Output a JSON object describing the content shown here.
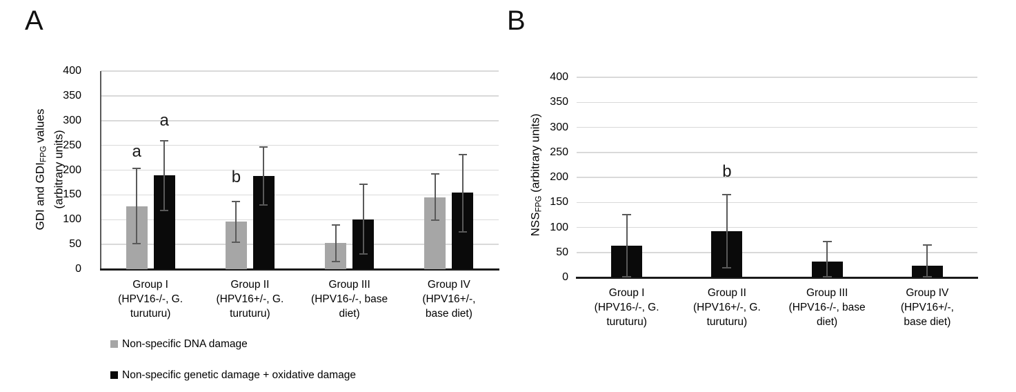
{
  "colors": {
    "gray_series": "#A6A6A6",
    "black_series": "#0A0A0A",
    "error_bar": "#595959",
    "gridline": "#D9D9D9",
    "axis": "#1A1A1A"
  },
  "chart_data": [
    {
      "type": "bar",
      "panel_label": "A",
      "ylabel_lines": [
        [
          {
            "t": "GDI and GDI"
          },
          {
            "t": "FPG",
            "sub": true
          },
          {
            "t": " values"
          }
        ],
        [
          {
            "t": "(arbitrary units)"
          }
        ]
      ],
      "ylim": [
        0,
        400
      ],
      "ytick_step": 50,
      "grid": true,
      "categories": [
        [
          "Group I",
          "(HPV16-/-, G.",
          "turuturu)"
        ],
        [
          "Group II",
          "(HPV16+/-, G.",
          "turuturu)"
        ],
        [
          "Group III",
          "(HPV16-/-, base",
          "diet)"
        ],
        [
          "Group IV",
          "(HPV16+/-,",
          "base diet)"
        ]
      ],
      "series": [
        {
          "name": "Non-specific DNA damage",
          "color": "#A6A6A6",
          "values": [
            127,
            96,
            53,
            145
          ],
          "err_low": [
            51,
            55,
            16,
            99
          ],
          "err_high": [
            203,
            137,
            89,
            193
          ]
        },
        {
          "name": "Non-specific genetic damage + oxidative damage",
          "color": "#0A0A0A",
          "values": [
            189,
            188,
            101,
            155
          ],
          "err_low": [
            118,
            130,
            30,
            75
          ],
          "err_high": [
            259,
            247,
            172,
            232
          ]
        }
      ],
      "annotations": [
        {
          "label": "a",
          "group": 0,
          "series": 0,
          "value": 237
        },
        {
          "label": "a",
          "group": 0,
          "series": 1,
          "value": 300
        },
        {
          "label": "b",
          "group": 1,
          "series": 0,
          "value": 185
        }
      ],
      "legend": true,
      "legend_position": "bottom-left"
    },
    {
      "type": "bar",
      "panel_label": "B",
      "ylabel_lines": [
        [
          {
            "t": "NSS"
          },
          {
            "t": "FPG",
            "sub": true
          },
          {
            "t": " (arbitrary units)"
          }
        ]
      ],
      "ylim": [
        0,
        400
      ],
      "ytick_step": 50,
      "grid": true,
      "categories": [
        [
          "Group I",
          "(HPV16-/-, G.",
          "turuturu)"
        ],
        [
          "Group II",
          "(HPV16+/-, G.",
          "turuturu)"
        ],
        [
          "Group III",
          "(HPV16-/-, base",
          "diet)"
        ],
        [
          "Group IV",
          "(HPV16+/-,",
          "base diet)"
        ]
      ],
      "series": [
        {
          "name": "NSS FPG",
          "color": "#0A0A0A",
          "values": [
            63,
            93,
            32,
            24
          ],
          "err_low": [
            2,
            20,
            1,
            2
          ],
          "err_high": [
            126,
            166,
            72,
            65
          ]
        }
      ],
      "annotations": [
        {
          "label": "b",
          "group": 1,
          "series": 0,
          "value": 211
        }
      ],
      "legend": false
    }
  ]
}
